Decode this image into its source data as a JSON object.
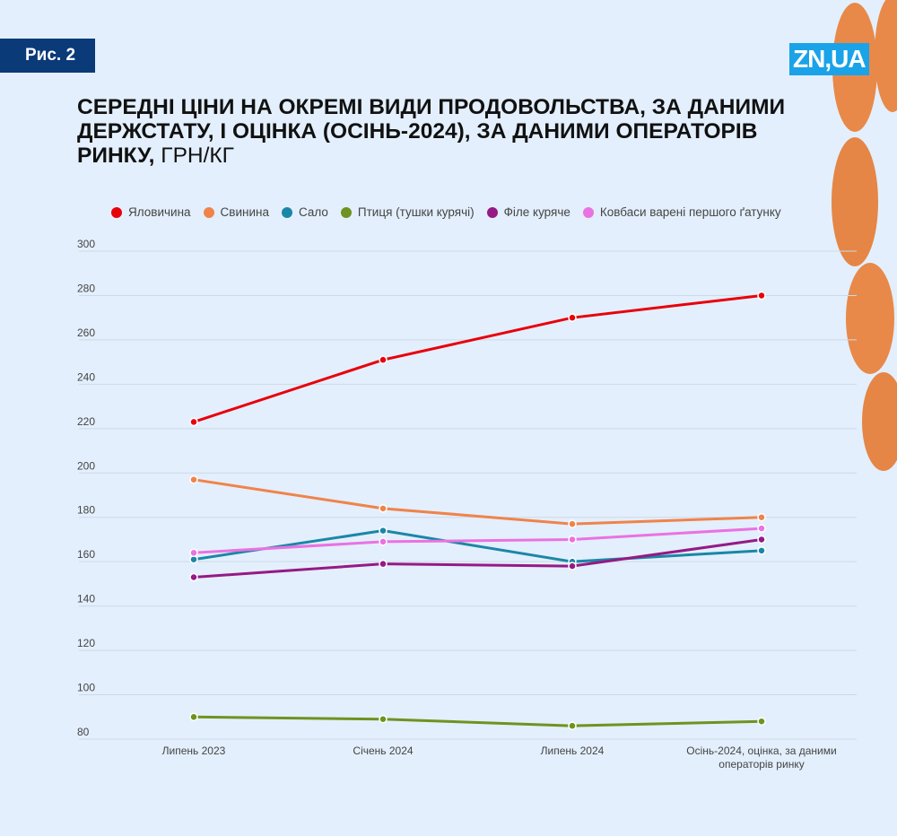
{
  "figure_label": "Рис. 2",
  "logo": "ZN,UA",
  "title_bold": "СЕРЕДНІ ЦІНИ НА ОКРЕМІ ВИДИ ПРОДОВОЛЬСТВА, ЗА ДАНИМИ ДЕРЖСТАТУ, І ОЦІНКА (ОСІНЬ-2024), ЗА ДАНИМИ ОПЕРАТОРІВ РИНКУ,",
  "title_unit": " ГРН/КГ",
  "chart_data": {
    "type": "line",
    "title": "СЕРЕДНІ ЦІНИ НА ОКРЕМІ ВИДИ ПРОДОВОЛЬСТВА, ЗА ДАНИМИ ДЕРЖСТАТУ, І ОЦІНКА (ОСІНЬ-2024), ЗА ДАНИМИ ОПЕРАТОРІВ РИНКУ, ГРН/КГ",
    "categories": [
      "Липень 2023",
      "Січень 2024",
      "Липень 2024",
      "Осінь-2024, оцінка, за даними операторів ринку"
    ],
    "ylim": [
      80,
      300
    ],
    "yticks": [
      80,
      100,
      120,
      140,
      160,
      180,
      200,
      220,
      240,
      260,
      280,
      300
    ],
    "grid": true,
    "legend_position": "top",
    "series": [
      {
        "name": "Яловичина",
        "color": "#e8000b",
        "values": [
          223,
          251,
          270,
          280
        ]
      },
      {
        "name": "Свинина",
        "color": "#f0834a",
        "values": [
          197,
          184,
          177,
          180
        ]
      },
      {
        "name": "Сало",
        "color": "#1b87a6",
        "values": [
          161,
          174,
          160,
          165
        ]
      },
      {
        "name": "Птиця (тушки курячі)",
        "color": "#6e9320",
        "values": [
          90,
          89,
          86,
          88
        ]
      },
      {
        "name": "Філе куряче",
        "color": "#951a85",
        "values": [
          153,
          159,
          158,
          170
        ]
      },
      {
        "name": "Ковбаси варені першого ґатунку",
        "color": "#ea72e2",
        "values": [
          164,
          169,
          170,
          175
        ]
      }
    ]
  }
}
